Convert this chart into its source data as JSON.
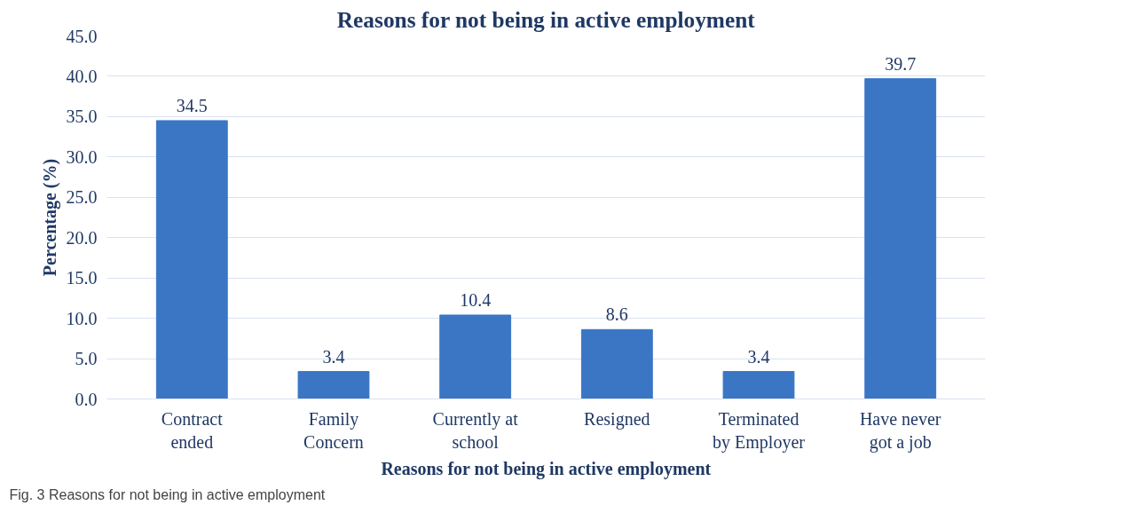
{
  "chart_data": {
    "type": "bar",
    "title": "Reasons for not being in active employment",
    "xlabel": "Reasons for not being in active employment",
    "ylabel": "Percentage (%)",
    "categories": [
      "Contract\nended",
      "Family\nConcern",
      "Currently at\nschool",
      "Resigned",
      "Terminated\nby Employer",
      "Have never\ngot a job"
    ],
    "values": [
      34.5,
      3.4,
      10.4,
      8.6,
      3.4,
      39.7
    ],
    "color": "#3a76c4",
    "ylim": [
      0,
      45
    ],
    "yticks": [
      {
        "value": 0,
        "label": "0.0"
      },
      {
        "value": 5,
        "label": "5.0"
      },
      {
        "value": 10,
        "label": "10.0"
      },
      {
        "value": 15,
        "label": "15.0"
      },
      {
        "value": 20,
        "label": "20.0"
      },
      {
        "value": 25,
        "label": "25.0"
      },
      {
        "value": 30,
        "label": "30.0"
      },
      {
        "value": 35,
        "label": "35.0"
      },
      {
        "value": 40,
        "label": "40.0"
      },
      {
        "value": 45,
        "label": "45.0"
      }
    ],
    "grid": "y",
    "data_labels": true,
    "annotations": [
      "Fig. 3 Reasons for not being in active employment"
    ]
  }
}
